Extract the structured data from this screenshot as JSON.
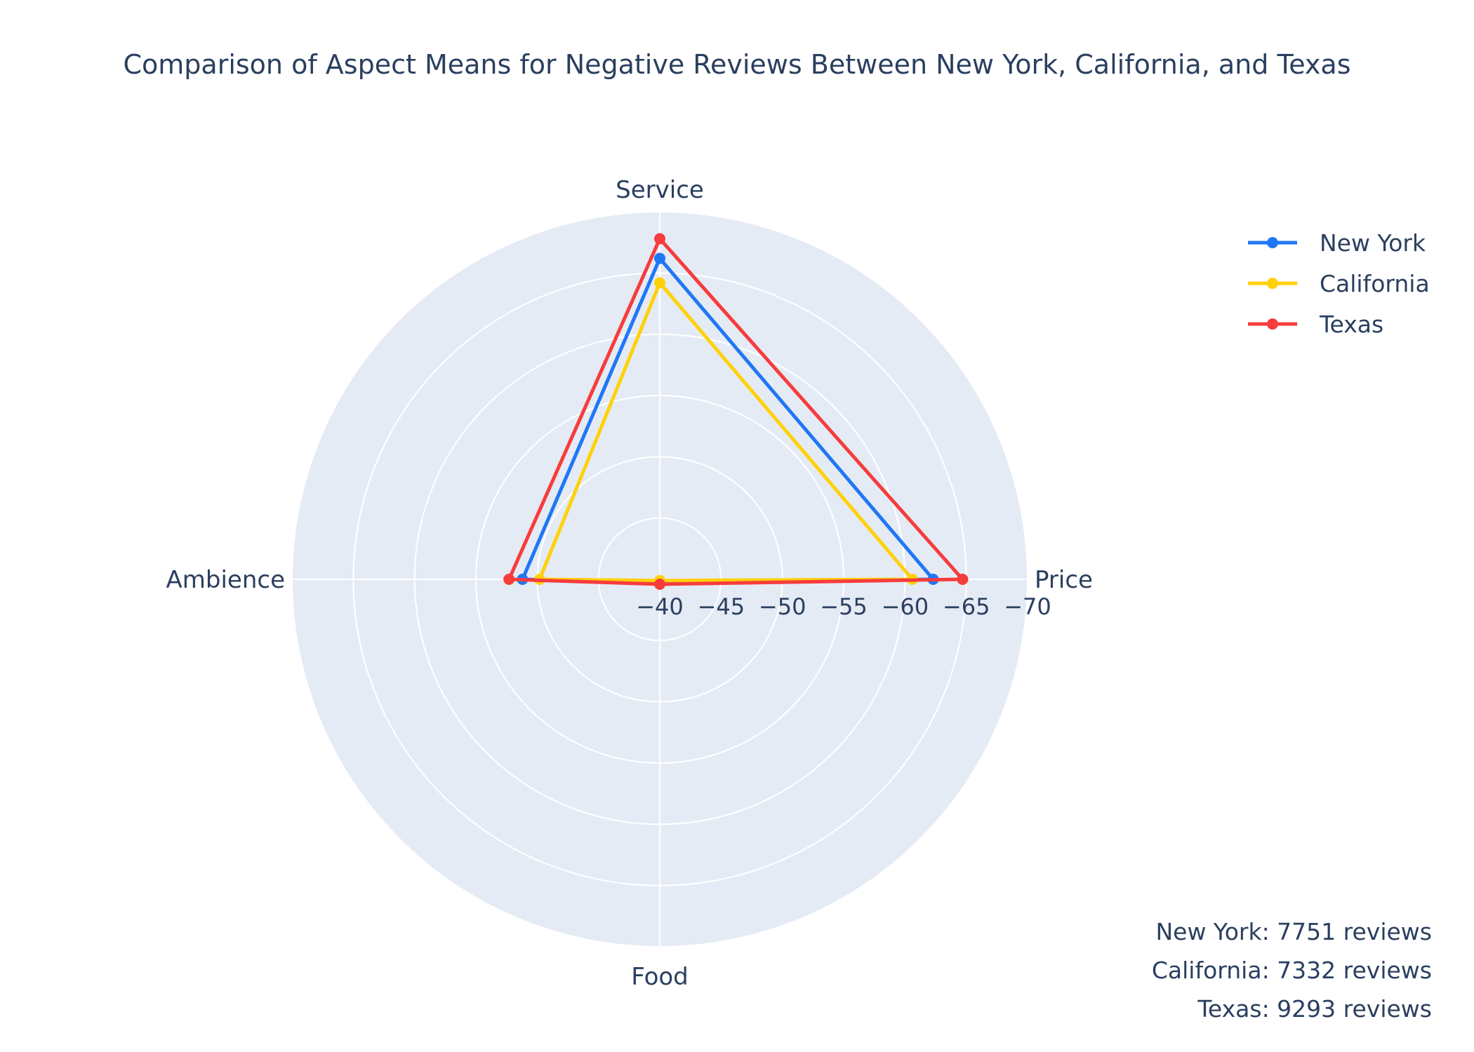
{
  "chart_data": {
    "type": "radar",
    "title": "Comparison of Aspect Means for Negative Reviews Between New York, California, and Texas",
    "axes": [
      "Service",
      "Price",
      "Food",
      "Ambience"
    ],
    "radial_range": [
      -40,
      -70
    ],
    "radial_ticks": [
      -40,
      -45,
      -50,
      -55,
      -60,
      -65,
      -70
    ],
    "radial_tick_labels": [
      "−40",
      "−45",
      "−50",
      "−55",
      "−60",
      "−65",
      "−70"
    ],
    "series": [
      {
        "name": "New York",
        "color": "#1f77f5",
        "values": {
          "Service": -66.2,
          "Price": -62.3,
          "Food": -40.3,
          "Ambience": -51.2
        }
      },
      {
        "name": "California",
        "color": "#ffd10a",
        "values": {
          "Service": -64.2,
          "Price": -60.6,
          "Food": -40.1,
          "Ambience": -49.8
        }
      },
      {
        "name": "Texas",
        "color": "#f73c3c",
        "values": {
          "Service": -67.8,
          "Price": -64.7,
          "Food": -40.4,
          "Ambience": -52.3
        }
      }
    ],
    "legend_position": "top-right",
    "grid": true,
    "background_color": "#e5ebf5",
    "annotations": [
      "New York: 7751 reviews",
      "California: 7332 reviews",
      "Texas: 9293 reviews"
    ]
  }
}
